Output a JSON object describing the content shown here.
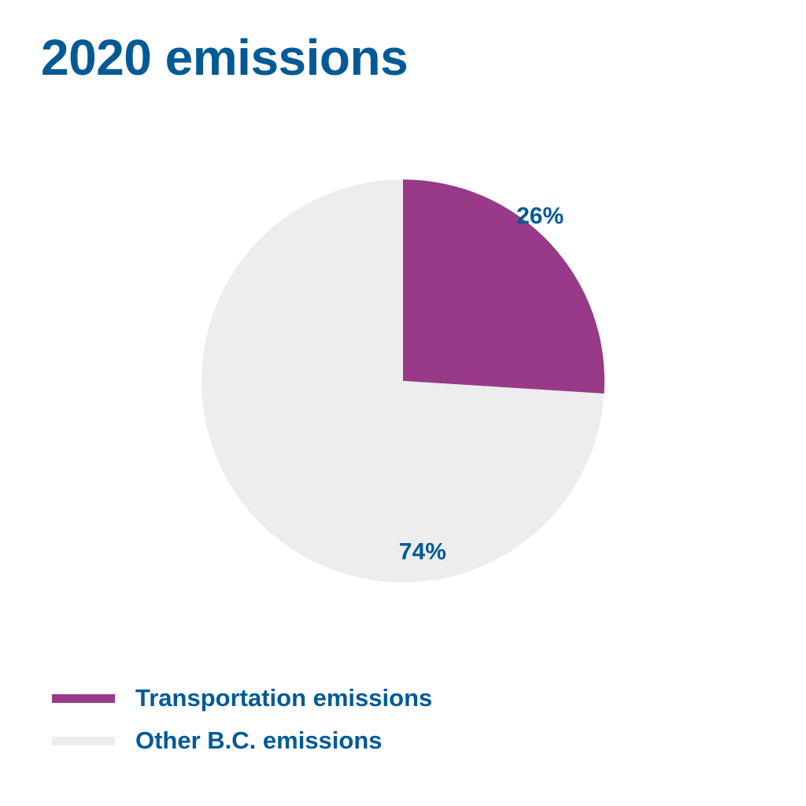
{
  "chart_data": {
    "type": "pie",
    "title": "2020 emissions",
    "slices": [
      {
        "name": "Transportation emissions",
        "value": 26,
        "label": "26%",
        "color": "#983a87"
      },
      {
        "name": "Other B.C. emissions",
        "value": 74,
        "label": "74%",
        "color": "#ededed"
      }
    ],
    "legend_position": "bottom-left",
    "label_color": "#005a96"
  }
}
